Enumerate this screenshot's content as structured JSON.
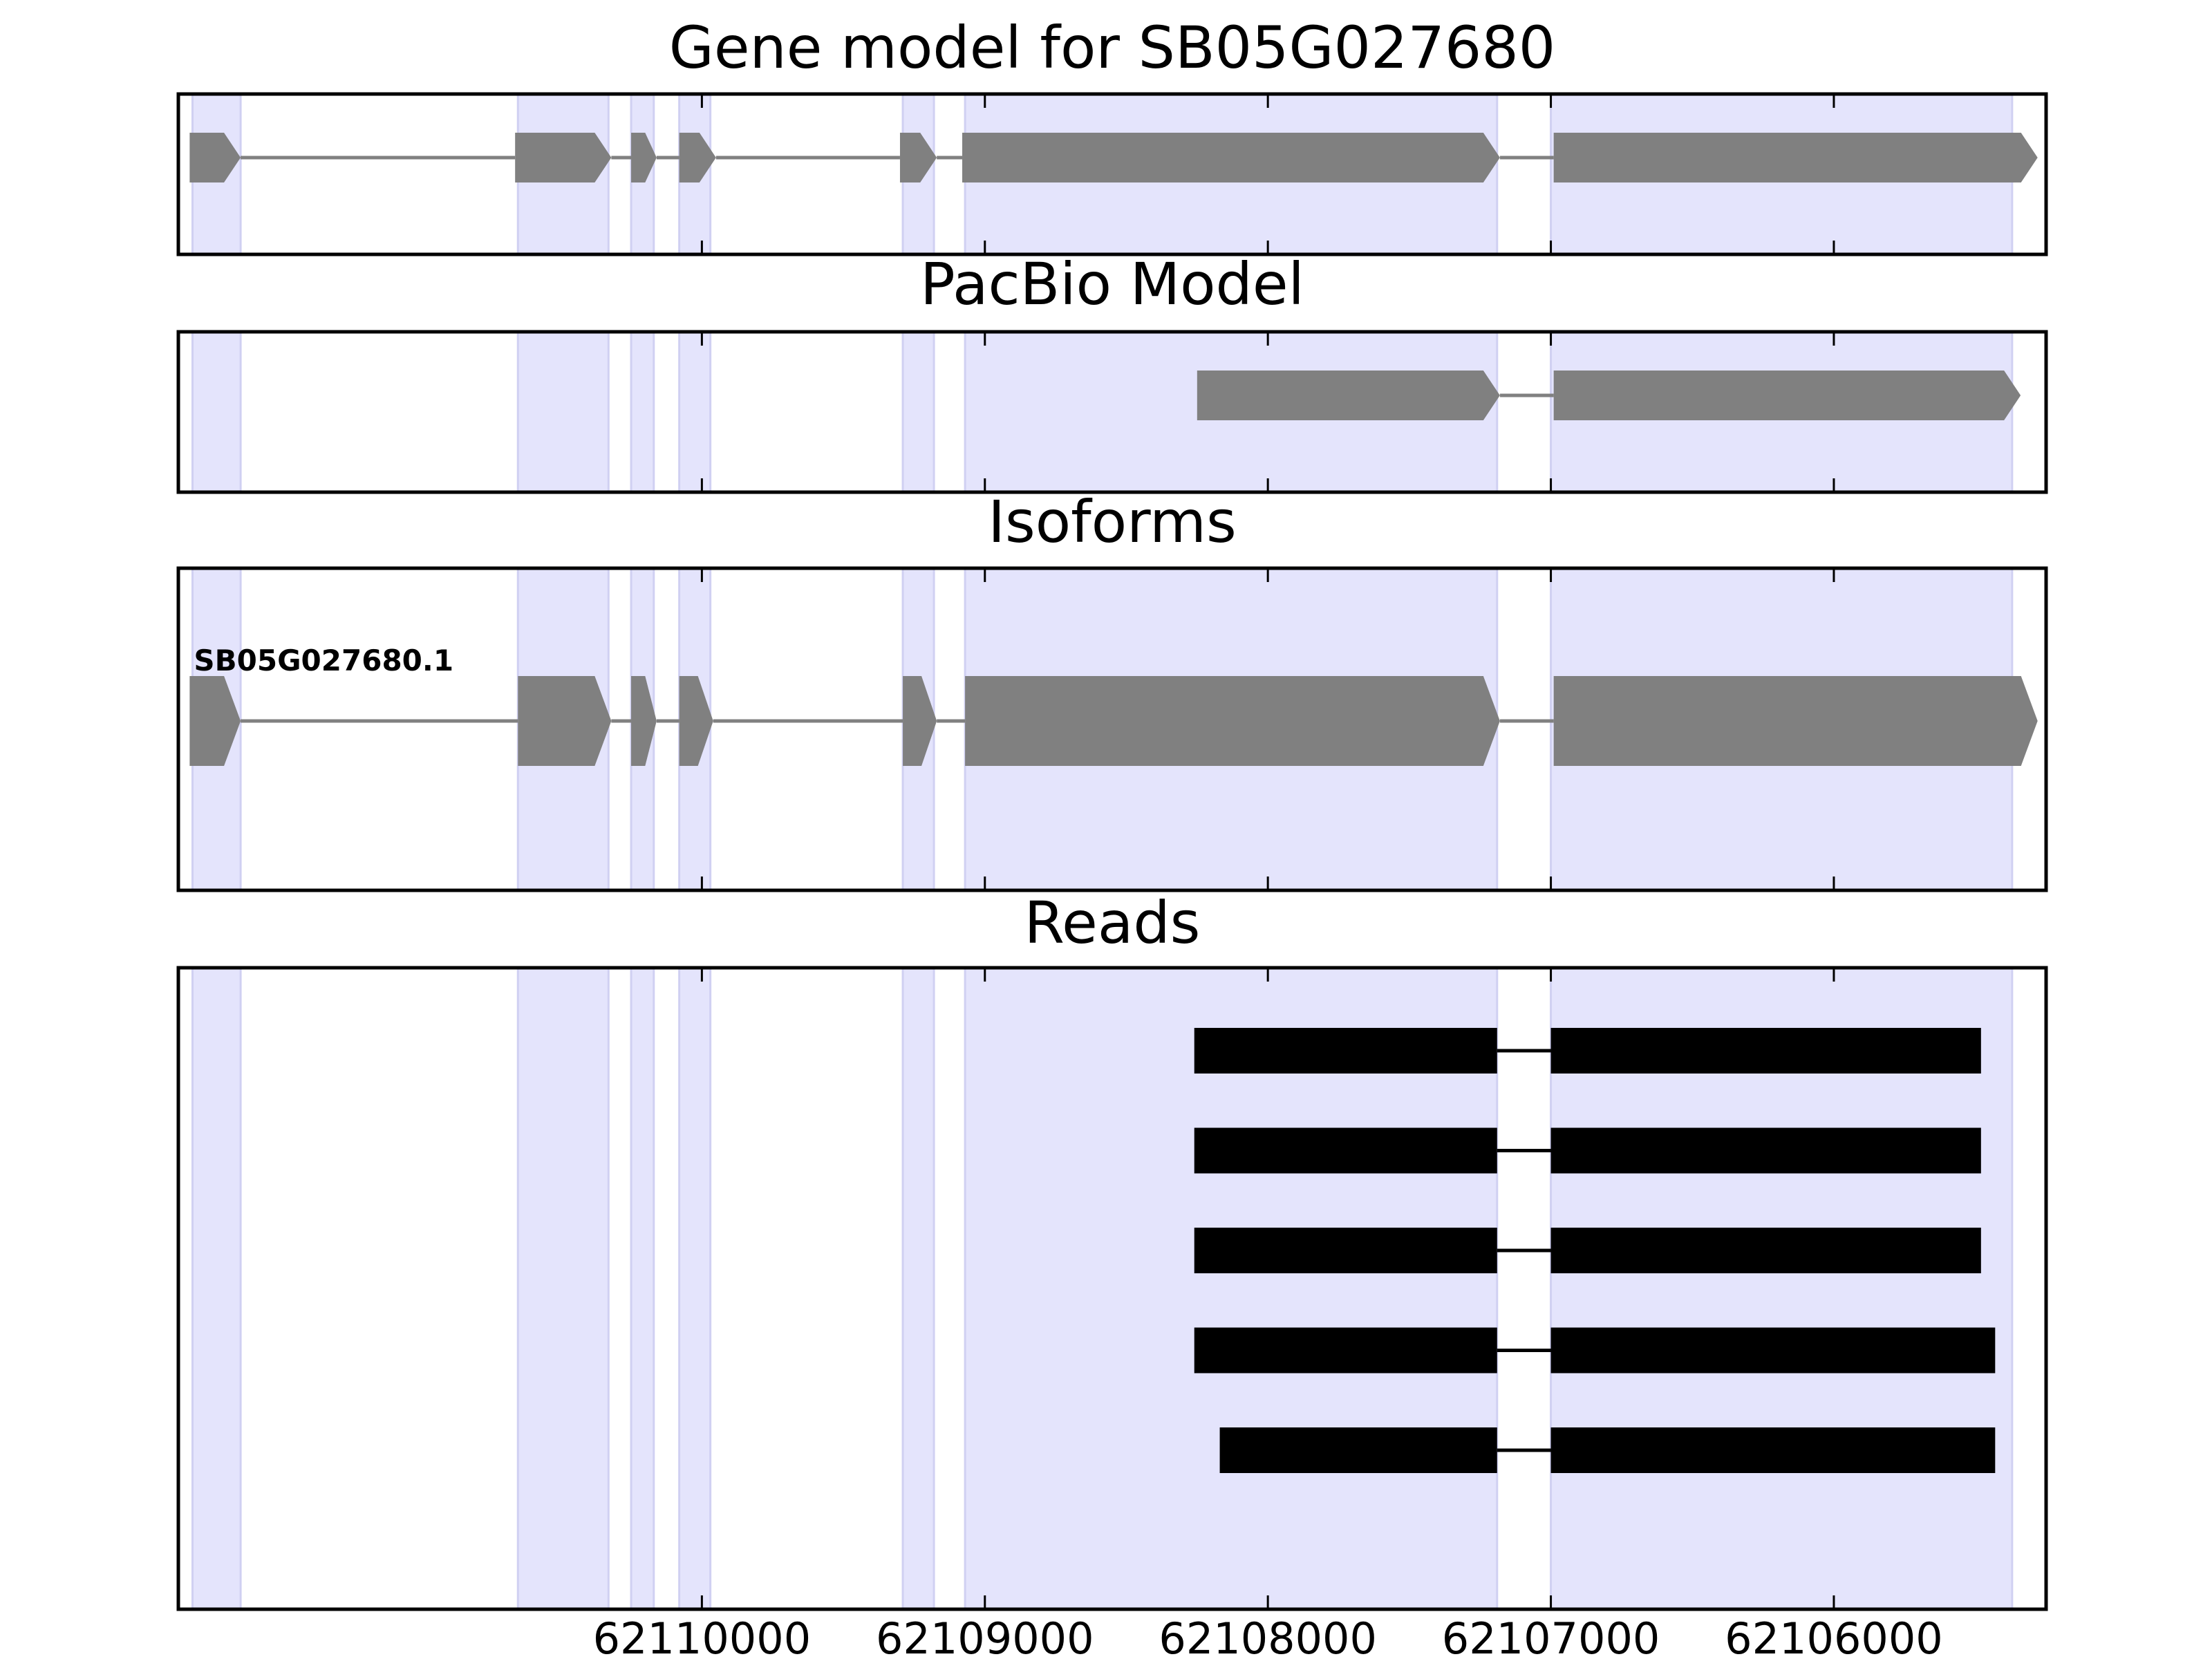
{
  "chart_data": {
    "type": "gene-model",
    "strand": "-",
    "xlim": [
      62111850,
      62105250
    ],
    "x_ticks": [
      62110000,
      62109000,
      62108000,
      62107000,
      62106000
    ],
    "x_tick_labels": [
      "62110000",
      "62109000",
      "62108000",
      "62107000",
      "62106000"
    ],
    "highlight_color": "#e4e4fc",
    "exon_color": "#808080",
    "read_color": "#000000",
    "highlight_regions": [
      [
        62111800,
        62111630
      ],
      [
        62110650,
        62110330
      ],
      [
        62110250,
        62110170
      ],
      [
        62110080,
        62109970
      ],
      [
        62109290,
        62109180
      ],
      [
        62109070,
        62107190
      ],
      [
        62107000,
        62105370
      ]
    ],
    "panels": [
      {
        "id": "gene",
        "title": "Gene model for SB05G027680",
        "track_height": 1,
        "tracks": [
          {
            "kind": "gene",
            "label": "",
            "exons": [
              [
                62111810,
                62111630
              ],
              [
                62110660,
                62110320
              ],
              [
                62110250,
                62110160
              ],
              [
                62110080,
                62109950
              ],
              [
                62109300,
                62109170
              ],
              [
                62109080,
                62107180
              ],
              [
                62106990,
                62105280
              ]
            ]
          }
        ]
      },
      {
        "id": "pacbio",
        "title": "PacBio Model",
        "track_height": 1,
        "tracks": [
          {
            "kind": "gene",
            "label": "",
            "exons": [
              [
                62108250,
                62107180
              ],
              [
                62106990,
                62105340
              ]
            ]
          }
        ]
      },
      {
        "id": "isoforms",
        "title": "Isoforms",
        "track_height": 1,
        "tracks": [
          {
            "kind": "gene",
            "label": "SB05G027680.1",
            "exons": [
              [
                62111810,
                62111630
              ],
              [
                62110650,
                62110320
              ],
              [
                62110250,
                62110160
              ],
              [
                62110080,
                62109960
              ],
              [
                62109290,
                62109170
              ],
              [
                62109070,
                62107180
              ],
              [
                62106990,
                62105280
              ]
            ]
          }
        ]
      },
      {
        "id": "reads",
        "title": "Reads",
        "track_height": 1.6,
        "tracks": [
          {
            "kind": "read",
            "label": "",
            "exons": [
              [
                62108260,
                62107190
              ],
              [
                62107000,
                62105480
              ]
            ]
          },
          {
            "kind": "read",
            "label": "",
            "exons": [
              [
                62108260,
                62107190
              ],
              [
                62107000,
                62105480
              ]
            ]
          },
          {
            "kind": "read",
            "label": "",
            "exons": [
              [
                62108260,
                62107190
              ],
              [
                62107000,
                62105480
              ]
            ]
          },
          {
            "kind": "read",
            "label": "",
            "exons": [
              [
                62108260,
                62107190
              ],
              [
                62107000,
                62105430
              ]
            ]
          },
          {
            "kind": "read",
            "label": "",
            "exons": [
              [
                62108170,
                62107190
              ],
              [
                62107000,
                62105430
              ]
            ]
          }
        ]
      }
    ]
  }
}
